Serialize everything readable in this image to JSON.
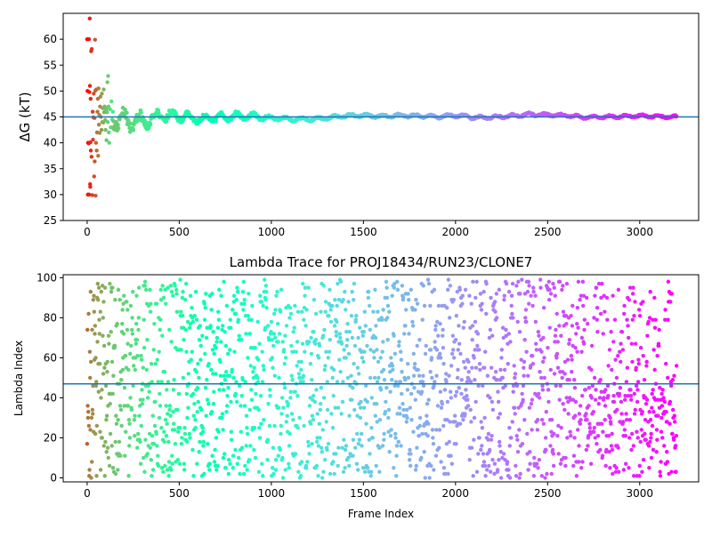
{
  "chart_data": [
    {
      "type": "scatter",
      "title": "",
      "xlabel": "",
      "ylabel": "ΔG (kT)",
      "xlim": [
        -130,
        3320
      ],
      "ylim": [
        25,
        65
      ],
      "xticks": [
        "0",
        "500",
        "1000",
        "1500",
        "2000",
        "2500",
        "3000"
      ],
      "yticks": [
        "25",
        "30",
        "35",
        "40",
        "45",
        "50",
        "55",
        "60"
      ],
      "hline": 45,
      "hline_color": "#1f77b4",
      "colormap": "rainbow",
      "n_frames": 3200,
      "early_points_frames_0_140": [
        [
          0,
          60
        ],
        [
          2,
          50
        ],
        [
          4,
          30
        ],
        [
          5,
          40
        ],
        [
          8,
          39.9
        ],
        [
          10,
          60
        ],
        [
          11,
          30
        ],
        [
          12,
          49.8
        ],
        [
          14,
          64
        ],
        [
          15,
          51
        ],
        [
          16,
          32
        ],
        [
          17,
          31.5
        ],
        [
          18,
          40.1
        ],
        [
          19,
          48.5
        ],
        [
          20,
          38.5
        ],
        [
          22,
          57.7
        ],
        [
          24,
          37.3
        ],
        [
          25,
          58.1
        ],
        [
          28,
          29.9
        ],
        [
          30,
          46
        ],
        [
          32,
          40.6
        ],
        [
          34,
          44.9
        ],
        [
          36,
          49.5
        ],
        [
          38,
          33.5
        ],
        [
          40,
          44.8
        ],
        [
          41,
          36.4
        ],
        [
          43,
          59.9
        ],
        [
          45,
          50.1
        ],
        [
          46,
          29.8
        ],
        [
          48,
          40
        ],
        [
          50,
          50.3
        ],
        [
          52,
          38.5
        ],
        [
          54,
          42
        ],
        [
          56,
          46
        ],
        [
          58,
          48.5
        ],
        [
          60,
          37.5
        ],
        [
          62,
          50.5
        ],
        [
          64,
          43.5
        ],
        [
          66,
          45.4
        ],
        [
          68,
          41.9
        ],
        [
          70,
          47
        ],
        [
          72,
          48.9
        ],
        [
          75,
          45
        ],
        [
          78,
          42.5
        ],
        [
          80,
          49.5
        ],
        [
          82,
          44
        ],
        [
          85,
          46.7
        ],
        [
          88,
          43.9
        ],
        [
          90,
          50.3
        ],
        [
          92,
          45.9
        ],
        [
          95,
          47
        ],
        [
          98,
          44.4
        ],
        [
          100,
          42.5
        ],
        [
          103,
          46.5
        ],
        [
          105,
          40.5
        ],
        [
          108,
          45.9
        ],
        [
          110,
          51.7
        ],
        [
          112,
          44
        ],
        [
          114,
          52.9
        ],
        [
          116,
          47
        ],
        [
          118,
          42
        ],
        [
          120,
          40
        ],
        [
          124,
          46.5
        ],
        [
          128,
          43
        ],
        [
          132,
          48
        ],
        [
          136,
          44.5
        ],
        [
          140,
          46
        ]
      ],
      "series_envelope_frames_140_3200": {
        "frames": [
          140,
          200,
          300,
          400,
          500,
          600,
          700,
          800,
          900,
          1000,
          1100,
          1200,
          1300,
          1400,
          1500,
          1600,
          1700,
          1800,
          1900,
          2000,
          2100,
          2200,
          2300,
          2400,
          2500,
          2600,
          2700,
          2800,
          2900,
          3000,
          3100,
          3200
        ],
        "center": [
          45,
          44.5,
          44,
          45.3,
          45.3,
          44.5,
          44.8,
          45.2,
          45.1,
          44.8,
          44.6,
          44.5,
          44.8,
          45.2,
          45.3,
          45.1,
          45.3,
          45.2,
          45.0,
          45.3,
          44.9,
          44.9,
          45.2,
          45.5,
          45.4,
          45.3,
          44.9,
          45.0,
          45.1,
          45.2,
          45.1,
          45.0
        ],
        "spread": [
          3.5,
          3.0,
          2.2,
          1.6,
          1.4,
          1.0,
          1.0,
          1.0,
          0.9,
          0.5,
          0.5,
          0.5,
          0.45,
          0.45,
          0.45,
          0.4,
          0.4,
          0.4,
          0.4,
          0.4,
          0.4,
          0.4,
          0.4,
          0.4,
          0.4,
          0.35,
          0.35,
          0.35,
          0.35,
          0.35,
          0.35,
          0.35
        ]
      }
    },
    {
      "type": "scatter",
      "title": "Lambda Trace for PROJ18434/RUN23/CLONE7",
      "xlabel": "Frame Index",
      "ylabel": "Lambda Index",
      "xlim": [
        -130,
        3320
      ],
      "ylim": [
        -2,
        101.5
      ],
      "xticks": [
        "0",
        "500",
        "1000",
        "1500",
        "2000",
        "2500",
        "3000"
      ],
      "yticks": [
        "0",
        "20",
        "40",
        "60",
        "80",
        "100"
      ],
      "hline": 47,
      "hline_color": "#1f77b4",
      "colormap": "rainbow",
      "n_frames": 3200,
      "lambda_range": [
        0,
        99
      ],
      "note_distribution": "lambda index values scattered uniformly over 0–99 for every frame; later frames slightly denser near 20–40"
    }
  ]
}
